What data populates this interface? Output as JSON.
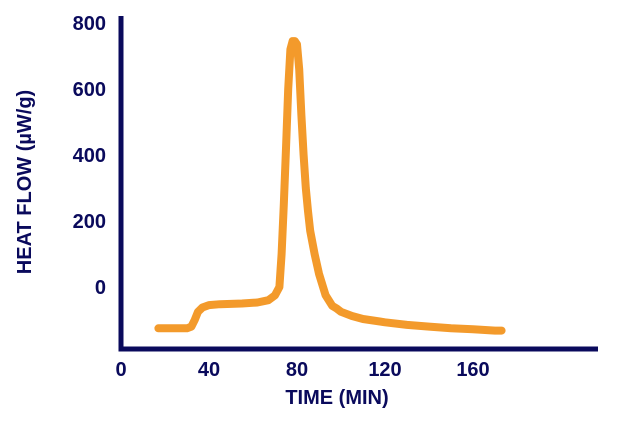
{
  "colors": {
    "axis": "#0a0a5c",
    "series": "#f39a2b"
  },
  "chart_data": {
    "type": "line",
    "title": "",
    "xlabel": "TIME (MIN)",
    "ylabel": "HEAT FLOW (µW/g)",
    "xlim": [
      0,
      210
    ],
    "ylim": [
      -200,
      800
    ],
    "x_ticks": [
      0,
      40,
      80,
      120,
      160
    ],
    "y_ticks": [
      0,
      200,
      400,
      600,
      800
    ],
    "grid": false,
    "legend": "none",
    "series": [
      {
        "x": [
          17,
          25,
          30,
          32,
          33.5,
          35,
          37,
          40,
          45,
          55,
          62,
          67,
          70,
          72,
          73,
          74,
          75,
          76,
          77,
          78,
          79,
          80,
          81,
          82,
          83,
          84,
          85,
          86,
          88,
          90,
          93,
          96,
          98,
          100,
          105,
          110,
          120,
          130,
          140,
          150,
          160,
          170,
          173
        ],
        "y": [
          -125,
          -125,
          -125,
          -120,
          -100,
          -75,
          -62,
          -55,
          -52,
          -50,
          -47,
          -40,
          -25,
          0,
          100,
          250,
          420,
          600,
          720,
          745,
          745,
          735,
          660,
          520,
          400,
          300,
          230,
          170,
          100,
          40,
          -25,
          -57,
          -65,
          -75,
          -88,
          -97,
          -107,
          -115,
          -120,
          -125,
          -128,
          -132,
          -132
        ]
      }
    ]
  }
}
